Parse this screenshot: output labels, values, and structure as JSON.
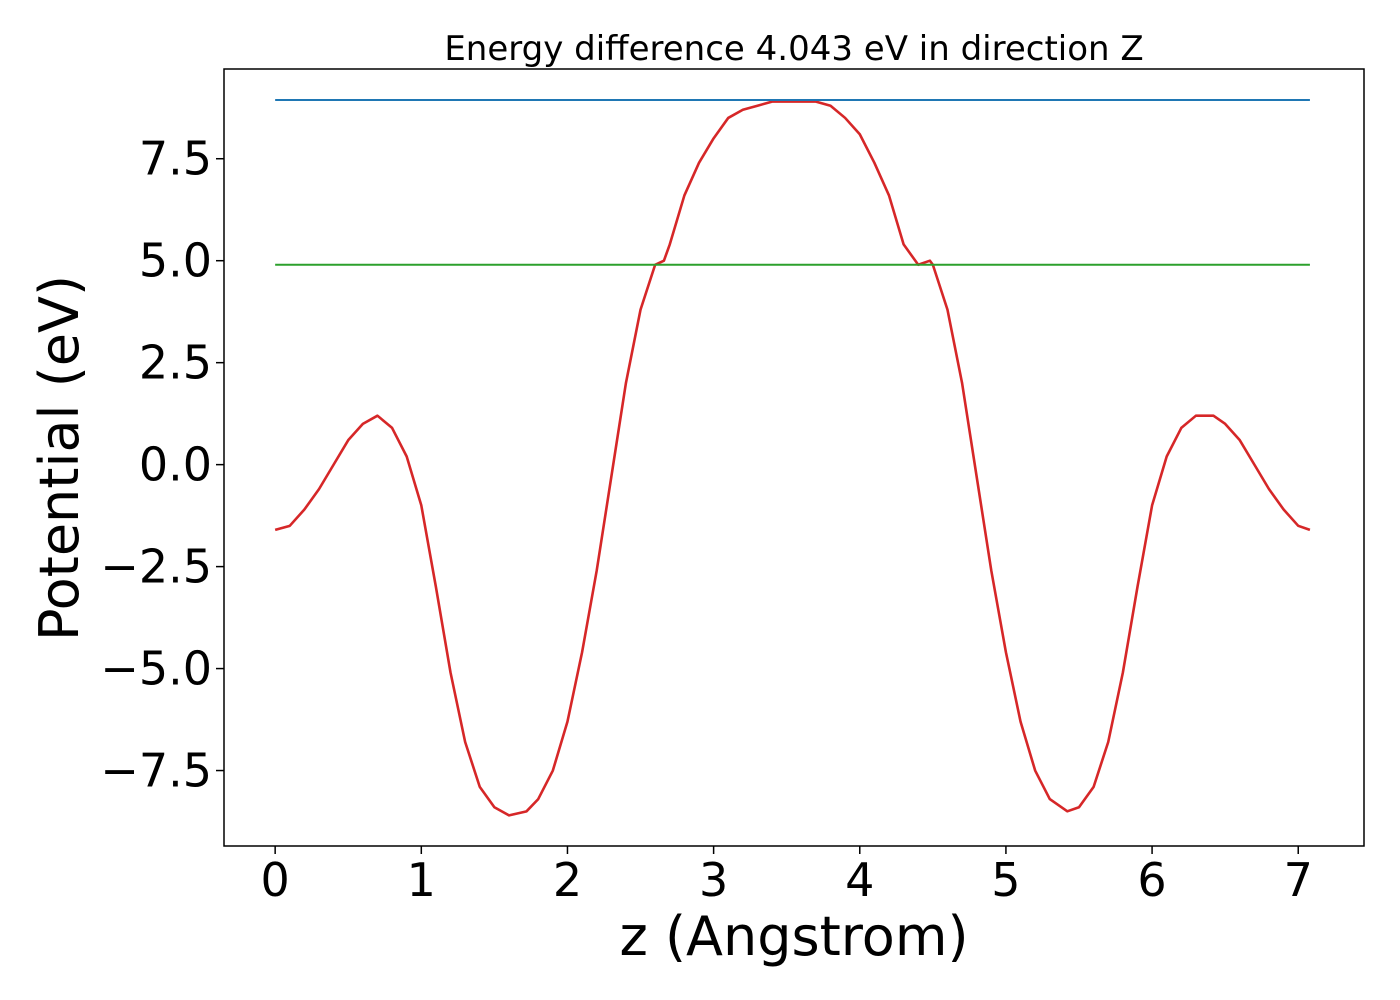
{
  "chart_data": {
    "type": "line",
    "title": "Energy difference 4.043 eV in direction Z",
    "xlabel": "z (Angstrom)",
    "ylabel": "Potential (eV)",
    "xlim": [
      -0.35,
      7.45
    ],
    "ylim": [
      -9.35,
      9.7
    ],
    "xticks": [
      0,
      1,
      2,
      3,
      4,
      5,
      6,
      7
    ],
    "xtick_labels": [
      "0",
      "1",
      "2",
      "3",
      "4",
      "5",
      "6",
      "7"
    ],
    "yticks": [
      7.5,
      5.0,
      2.5,
      0.0,
      -2.5,
      -5.0,
      -7.5
    ],
    "ytick_labels": [
      "7.5",
      "5.0",
      "2.5",
      "0.0",
      "−2.5",
      "−5.0",
      "−7.5"
    ],
    "grid": false,
    "legend": "none",
    "series": [
      {
        "color": "#d62728",
        "x": [
          0.0,
          0.1,
          0.2,
          0.3,
          0.4,
          0.5,
          0.6,
          0.7,
          0.8,
          0.9,
          1.0,
          1.1,
          1.2,
          1.3,
          1.4,
          1.5,
          1.6,
          1.72,
          1.8,
          1.9,
          2.0,
          2.1,
          2.2,
          2.3,
          2.4,
          2.5,
          2.6,
          2.66,
          2.7,
          2.8,
          2.9,
          3.0,
          3.1,
          3.2,
          3.3,
          3.4,
          3.55,
          3.7,
          3.8,
          3.9,
          4.0,
          4.1,
          4.2,
          4.3,
          4.4,
          4.48,
          4.5,
          4.6,
          4.7,
          4.8,
          4.9,
          5.0,
          5.1,
          5.2,
          5.3,
          5.42,
          5.5,
          5.6,
          5.7,
          5.8,
          5.9,
          6.0,
          6.1,
          6.2,
          6.3,
          6.42,
          6.5,
          6.6,
          6.7,
          6.8,
          6.9,
          7.0,
          7.08
        ],
        "values": [
          -1.6,
          -1.5,
          -1.1,
          -0.6,
          0.0,
          0.6,
          1.0,
          1.2,
          0.9,
          0.2,
          -1.0,
          -3.0,
          -5.1,
          -6.8,
          -7.9,
          -8.4,
          -8.6,
          -8.5,
          -8.2,
          -7.5,
          -6.3,
          -4.6,
          -2.6,
          -0.3,
          2.0,
          3.8,
          4.9,
          5.0,
          5.4,
          6.6,
          7.4,
          8.0,
          8.5,
          8.7,
          8.8,
          8.9,
          8.9,
          8.9,
          8.8,
          8.5,
          8.1,
          7.4,
          6.6,
          5.4,
          4.9,
          5.0,
          4.9,
          3.8,
          2.0,
          -0.3,
          -2.6,
          -4.6,
          -6.3,
          -7.5,
          -8.2,
          -8.5,
          -8.4,
          -7.9,
          -6.8,
          -5.1,
          -3.0,
          -1.0,
          0.2,
          0.9,
          1.2,
          1.2,
          1.0,
          0.6,
          0.0,
          -0.6,
          -1.1,
          -1.5,
          -1.6
        ]
      },
      {
        "color": "#1f77b4",
        "x": [
          0.0,
          7.08
        ],
        "values": [
          8.94,
          8.94
        ]
      },
      {
        "color": "#2ca02c",
        "x": [
          0.0,
          7.08
        ],
        "values": [
          4.9,
          4.9
        ]
      }
    ]
  }
}
